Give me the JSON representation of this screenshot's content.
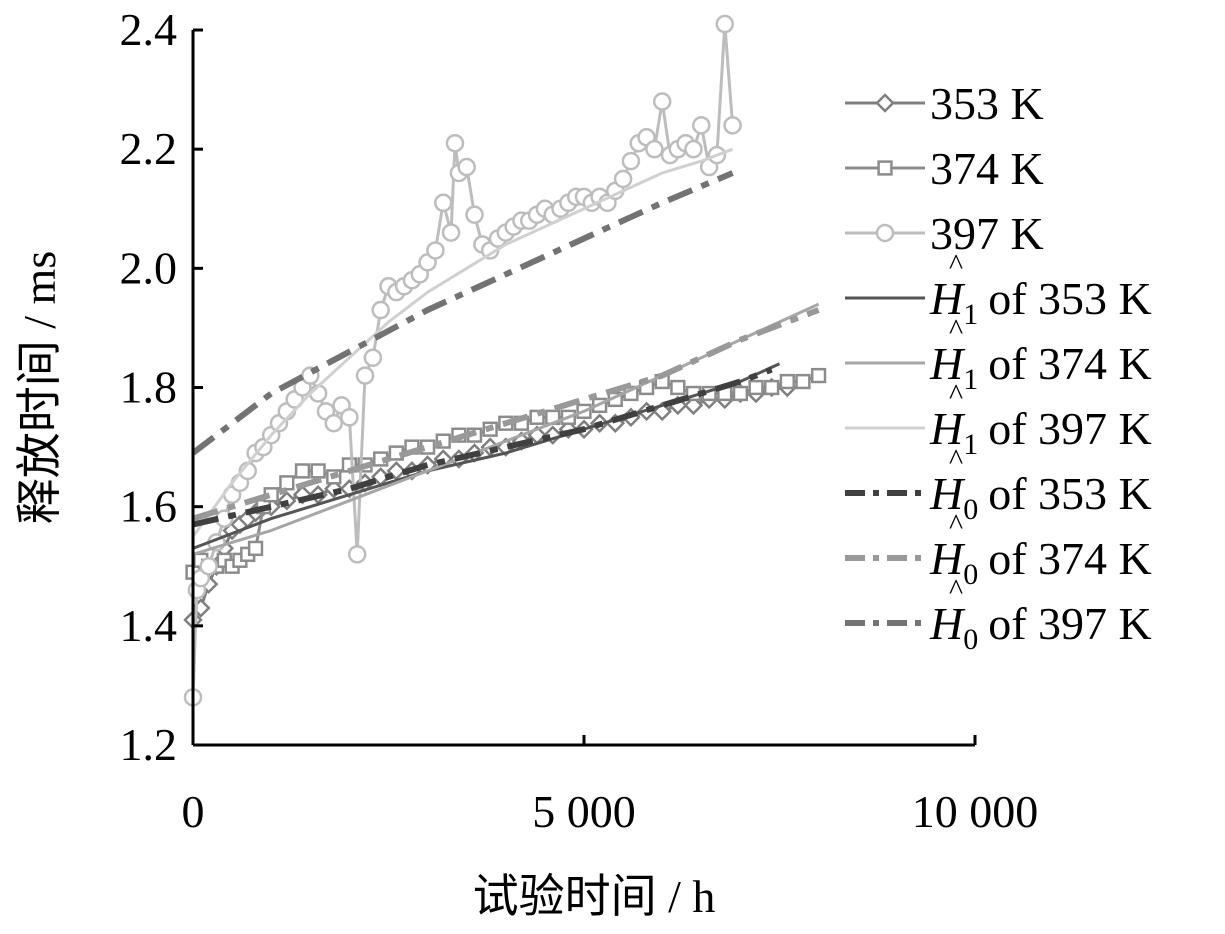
{
  "chart_data": {
    "type": "line",
    "xlabel": "试验时间 / h",
    "ylabel": "释放时间 / ms",
    "xlim": [
      0,
      10000
    ],
    "ylim": [
      1.2,
      2.4
    ],
    "x_ticks": [
      0,
      5000,
      10000
    ],
    "x_tick_labels": [
      "0",
      "5 000",
      "10 000"
    ],
    "y_ticks": [
      1.2,
      1.4,
      1.6,
      1.8,
      2.0,
      2.2,
      2.4
    ],
    "y_tick_labels": [
      "1.2",
      "1.4",
      "1.6",
      "1.8",
      "2.0",
      "2.2",
      "2.4"
    ],
    "grid": false,
    "legend_position": "right",
    "series": [
      {
        "name": "353 K",
        "kind": "observed",
        "marker": "diamond",
        "color": "#7f7f7f",
        "points": [
          [
            0,
            1.41
          ],
          [
            100,
            1.43
          ],
          [
            200,
            1.47
          ],
          [
            300,
            1.5
          ],
          [
            400,
            1.53
          ],
          [
            500,
            1.56
          ],
          [
            600,
            1.57
          ],
          [
            700,
            1.58
          ],
          [
            800,
            1.59
          ],
          [
            900,
            1.6
          ],
          [
            1000,
            1.6
          ],
          [
            1200,
            1.61
          ],
          [
            1400,
            1.62
          ],
          [
            1600,
            1.62
          ],
          [
            1800,
            1.63
          ],
          [
            2000,
            1.63
          ],
          [
            2200,
            1.64
          ],
          [
            2400,
            1.65
          ],
          [
            2600,
            1.66
          ],
          [
            2800,
            1.66
          ],
          [
            3000,
            1.67
          ],
          [
            3200,
            1.68
          ],
          [
            3400,
            1.68
          ],
          [
            3600,
            1.69
          ],
          [
            3800,
            1.7
          ],
          [
            4000,
            1.7
          ],
          [
            4200,
            1.71
          ],
          [
            4400,
            1.72
          ],
          [
            4600,
            1.72
          ],
          [
            4800,
            1.73
          ],
          [
            5000,
            1.73
          ],
          [
            5200,
            1.74
          ],
          [
            5400,
            1.74
          ],
          [
            5600,
            1.75
          ],
          [
            5800,
            1.76
          ],
          [
            6000,
            1.76
          ],
          [
            6200,
            1.77
          ],
          [
            6400,
            1.77
          ],
          [
            6600,
            1.78
          ],
          [
            6800,
            1.78
          ],
          [
            7000,
            1.79
          ],
          [
            7200,
            1.79
          ],
          [
            7400,
            1.8
          ],
          [
            7600,
            1.8
          ]
        ]
      },
      {
        "name": "374 K",
        "kind": "observed",
        "marker": "square",
        "color": "#8c8c8c",
        "points": [
          [
            0,
            1.49
          ],
          [
            100,
            1.51
          ],
          [
            200,
            1.5
          ],
          [
            300,
            1.5
          ],
          [
            400,
            1.51
          ],
          [
            500,
            1.5
          ],
          [
            600,
            1.51
          ],
          [
            700,
            1.52
          ],
          [
            800,
            1.53
          ],
          [
            900,
            1.6
          ],
          [
            1000,
            1.62
          ],
          [
            1200,
            1.64
          ],
          [
            1400,
            1.66
          ],
          [
            1600,
            1.66
          ],
          [
            1800,
            1.65
          ],
          [
            2000,
            1.67
          ],
          [
            2200,
            1.67
          ],
          [
            2400,
            1.68
          ],
          [
            2600,
            1.69
          ],
          [
            2800,
            1.7
          ],
          [
            3000,
            1.7
          ],
          [
            3200,
            1.71
          ],
          [
            3400,
            1.72
          ],
          [
            3600,
            1.72
          ],
          [
            3800,
            1.73
          ],
          [
            4000,
            1.74
          ],
          [
            4200,
            1.74
          ],
          [
            4400,
            1.75
          ],
          [
            4600,
            1.75
          ],
          [
            4800,
            1.75
          ],
          [
            5000,
            1.76
          ],
          [
            5200,
            1.77
          ],
          [
            5400,
            1.78
          ],
          [
            5600,
            1.79
          ],
          [
            5800,
            1.8
          ],
          [
            6000,
            1.81
          ],
          [
            6200,
            1.8
          ],
          [
            6400,
            1.79
          ],
          [
            6600,
            1.79
          ],
          [
            6800,
            1.79
          ],
          [
            7000,
            1.79
          ],
          [
            7200,
            1.8
          ],
          [
            7400,
            1.8
          ],
          [
            7600,
            1.81
          ],
          [
            7800,
            1.81
          ],
          [
            8000,
            1.82
          ]
        ]
      },
      {
        "name": "397 K",
        "kind": "observed",
        "marker": "circle",
        "color": "#bdbdbd",
        "points": [
          [
            0,
            1.28
          ],
          [
            50,
            1.46
          ],
          [
            100,
            1.48
          ],
          [
            200,
            1.5
          ],
          [
            300,
            1.54
          ],
          [
            400,
            1.58
          ],
          [
            500,
            1.62
          ],
          [
            600,
            1.64
          ],
          [
            700,
            1.66
          ],
          [
            800,
            1.69
          ],
          [
            900,
            1.7
          ],
          [
            1000,
            1.72
          ],
          [
            1100,
            1.74
          ],
          [
            1200,
            1.76
          ],
          [
            1300,
            1.78
          ],
          [
            1400,
            1.8
          ],
          [
            1500,
            1.82
          ],
          [
            1600,
            1.79
          ],
          [
            1700,
            1.76
          ],
          [
            1800,
            1.74
          ],
          [
            1900,
            1.77
          ],
          [
            2000,
            1.75
          ],
          [
            2100,
            1.52
          ],
          [
            2200,
            1.82
          ],
          [
            2300,
            1.85
          ],
          [
            2400,
            1.93
          ],
          [
            2500,
            1.97
          ],
          [
            2600,
            1.96
          ],
          [
            2700,
            1.97
          ],
          [
            2800,
            1.98
          ],
          [
            2900,
            1.99
          ],
          [
            3000,
            2.01
          ],
          [
            3100,
            2.03
          ],
          [
            3200,
            2.11
          ],
          [
            3300,
            2.06
          ],
          [
            3350,
            2.21
          ],
          [
            3400,
            2.16
          ],
          [
            3500,
            2.17
          ],
          [
            3600,
            2.09
          ],
          [
            3700,
            2.04
          ],
          [
            3800,
            2.03
          ],
          [
            3900,
            2.05
          ],
          [
            4000,
            2.06
          ],
          [
            4100,
            2.07
          ],
          [
            4200,
            2.08
          ],
          [
            4300,
            2.08
          ],
          [
            4400,
            2.09
          ],
          [
            4500,
            2.1
          ],
          [
            4600,
            2.09
          ],
          [
            4700,
            2.1
          ],
          [
            4800,
            2.11
          ],
          [
            4900,
            2.12
          ],
          [
            5000,
            2.12
          ],
          [
            5100,
            2.11
          ],
          [
            5200,
            2.12
          ],
          [
            5300,
            2.11
          ],
          [
            5400,
            2.13
          ],
          [
            5500,
            2.15
          ],
          [
            5600,
            2.18
          ],
          [
            5700,
            2.21
          ],
          [
            5800,
            2.22
          ],
          [
            5900,
            2.2
          ],
          [
            6000,
            2.28
          ],
          [
            6100,
            2.19
          ],
          [
            6200,
            2.2
          ],
          [
            6300,
            2.21
          ],
          [
            6400,
            2.2
          ],
          [
            6500,
            2.24
          ],
          [
            6600,
            2.17
          ],
          [
            6700,
            2.19
          ],
          [
            6800,
            2.41
          ],
          [
            6900,
            2.24
          ]
        ]
      },
      {
        "name": "H1 of 353 K",
        "label_main": "H",
        "label_sub": "1",
        "label_rest": "of 353 K",
        "kind": "fit",
        "dash": "solid",
        "color": "#555555",
        "points": [
          [
            0,
            1.53
          ],
          [
            1000,
            1.58
          ],
          [
            2000,
            1.62
          ],
          [
            3000,
            1.66
          ],
          [
            4000,
            1.69
          ],
          [
            5000,
            1.73
          ],
          [
            6000,
            1.77
          ],
          [
            7000,
            1.81
          ],
          [
            7500,
            1.84
          ]
        ]
      },
      {
        "name": "H1 of 374 K",
        "label_main": "H",
        "label_sub": "1",
        "label_rest": "of 374 K",
        "kind": "fit",
        "dash": "solid",
        "color": "#a6a6a6",
        "points": [
          [
            0,
            1.52
          ],
          [
            1000,
            1.56
          ],
          [
            2000,
            1.61
          ],
          [
            3000,
            1.66
          ],
          [
            4000,
            1.71
          ],
          [
            5000,
            1.76
          ],
          [
            6000,
            1.82
          ],
          [
            7000,
            1.88
          ],
          [
            8000,
            1.94
          ]
        ]
      },
      {
        "name": "H1 of 397 K",
        "label_main": "H",
        "label_sub": "1",
        "label_rest": "of 397 K",
        "kind": "fit",
        "dash": "solid",
        "color": "#d0d0d0",
        "points": [
          [
            0,
            1.55
          ],
          [
            500,
            1.64
          ],
          [
            1000,
            1.72
          ],
          [
            1500,
            1.79
          ],
          [
            2000,
            1.85
          ],
          [
            2500,
            1.91
          ],
          [
            3000,
            1.96
          ],
          [
            3500,
            2.0
          ],
          [
            4000,
            2.04
          ],
          [
            4500,
            2.07
          ],
          [
            5000,
            2.1
          ],
          [
            5500,
            2.13
          ],
          [
            6000,
            2.16
          ],
          [
            6500,
            2.18
          ],
          [
            6900,
            2.2
          ]
        ]
      },
      {
        "name": "H0 of 353 K",
        "label_main": "H",
        "label_sub": "0",
        "label_rest": "of 353 K",
        "kind": "fit",
        "dash": "dashed",
        "color": "#404040",
        "points": [
          [
            0,
            1.57
          ],
          [
            1000,
            1.6
          ],
          [
            2000,
            1.63
          ],
          [
            3000,
            1.67
          ],
          [
            4000,
            1.7
          ],
          [
            5000,
            1.73
          ],
          [
            6000,
            1.77
          ],
          [
            7000,
            1.81
          ],
          [
            7400,
            1.83
          ]
        ]
      },
      {
        "name": "H0 of 374 K",
        "label_main": "H",
        "label_sub": "0",
        "label_rest": "of 374 K",
        "kind": "fit",
        "dash": "dashed",
        "color": "#999999",
        "points": [
          [
            0,
            1.58
          ],
          [
            1000,
            1.62
          ],
          [
            2000,
            1.66
          ],
          [
            3000,
            1.7
          ],
          [
            4000,
            1.74
          ],
          [
            5000,
            1.78
          ],
          [
            6000,
            1.82
          ],
          [
            7000,
            1.88
          ],
          [
            8000,
            1.93
          ]
        ]
      },
      {
        "name": "H0 of 397 K",
        "label_main": "H",
        "label_sub": "0",
        "label_rest": "of 397 K",
        "kind": "fit",
        "dash": "dashed",
        "color": "#737373",
        "points": [
          [
            0,
            1.69
          ],
          [
            1000,
            1.79
          ],
          [
            2000,
            1.86
          ],
          [
            3000,
            1.93
          ],
          [
            4000,
            1.99
          ],
          [
            5000,
            2.05
          ],
          [
            6000,
            2.11
          ],
          [
            6900,
            2.16
          ]
        ]
      }
    ]
  }
}
